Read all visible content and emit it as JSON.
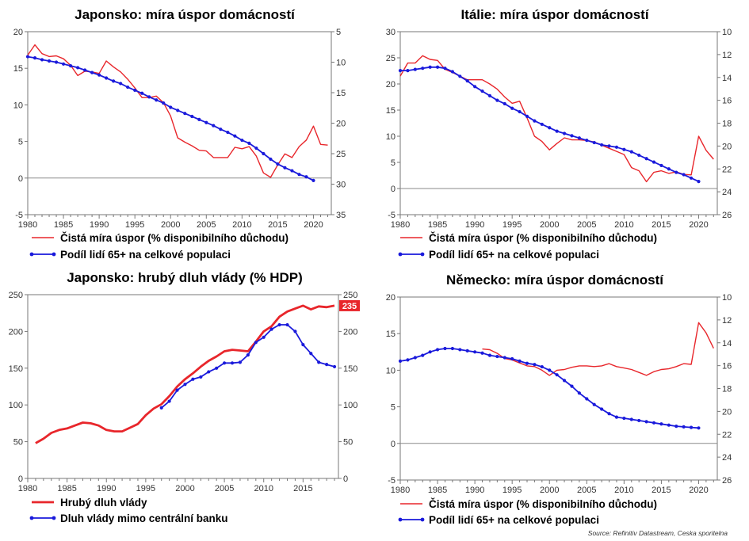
{
  "source": "Source: Refinitiv Datastream, Ceska sporitelna",
  "chart_data": [
    {
      "type": "line",
      "title": "Japonsko: míra úspor domácností",
      "xlim": [
        1980,
        2022.5
      ],
      "xticks": [
        1980,
        1985,
        1990,
        1995,
        2000,
        2005,
        2010,
        2015,
        2020
      ],
      "ylim": [
        -5,
        20
      ],
      "yticks": [
        -5,
        0,
        5,
        10,
        15,
        20
      ],
      "y2lim": [
        35,
        5
      ],
      "y2ticks": [
        5,
        10,
        15,
        20,
        25,
        30,
        35
      ],
      "y2_reversed": true,
      "zero_line": true,
      "series": [
        {
          "name": "Čistá míra úspor (% disponibilního důchodu)",
          "color": "#e8262b",
          "axis": "left",
          "markers": false,
          "width": 1.4,
          "x": [
            1980,
            1981,
            1982,
            1983,
            1984,
            1985,
            1986,
            1987,
            1988,
            1989,
            1990,
            1991,
            1992,
            1993,
            1994,
            1995,
            1996,
            1997,
            1998,
            1999,
            2000,
            2001,
            2002,
            2003,
            2004,
            2005,
            2006,
            2007,
            2008,
            2009,
            2010,
            2011,
            2012,
            2013,
            2014,
            2015,
            2016,
            2017,
            2018,
            2019,
            2020,
            2021,
            2022
          ],
          "values": [
            16.8,
            18.2,
            17.0,
            16.6,
            16.7,
            16.3,
            15.4,
            14.0,
            14.6,
            14.5,
            14.3,
            16.0,
            15.2,
            14.5,
            13.5,
            12.3,
            11.0,
            11.0,
            11.2,
            10.3,
            8.5,
            5.5,
            4.9,
            4.4,
            3.8,
            3.7,
            2.8,
            2.8,
            2.8,
            4.2,
            4.0,
            4.3,
            3.0,
            0.7,
            0.1,
            1.8,
            3.3,
            2.8,
            4.3,
            5.2,
            7.1,
            4.6,
            4.5
          ]
        },
        {
          "name": "Podíl lidí 65+ na celkové populaci",
          "color": "#1a1adb",
          "axis": "right",
          "markers": true,
          "width": 1.8,
          "x": [
            1980,
            1981,
            1982,
            1983,
            1984,
            1985,
            1986,
            1987,
            1988,
            1989,
            1990,
            1991,
            1992,
            1993,
            1994,
            1995,
            1996,
            1997,
            1998,
            1999,
            2000,
            2001,
            2002,
            2003,
            2004,
            2005,
            2006,
            2007,
            2008,
            2009,
            2010,
            2011,
            2012,
            2013,
            2014,
            2015,
            2016,
            2017,
            2018,
            2019,
            2020
          ],
          "values": [
            9.1,
            9.3,
            9.6,
            9.8,
            10.0,
            10.3,
            10.6,
            10.9,
            11.3,
            11.7,
            12.1,
            12.6,
            13.1,
            13.5,
            14.1,
            14.6,
            15.1,
            15.7,
            16.2,
            16.7,
            17.4,
            17.9,
            18.4,
            18.9,
            19.4,
            19.9,
            20.4,
            21.0,
            21.5,
            22.1,
            22.8,
            23.3,
            24.1,
            25.0,
            25.9,
            26.7,
            27.3,
            27.8,
            28.4,
            28.8,
            29.4
          ]
        }
      ]
    },
    {
      "type": "line",
      "title": "Itálie: míra úspor domácností",
      "xlim": [
        1980,
        2022.5
      ],
      "xticks": [
        1980,
        1985,
        1990,
        1995,
        2000,
        2005,
        2010,
        2015,
        2020
      ],
      "ylim": [
        -5,
        30
      ],
      "yticks": [
        -5,
        0,
        5,
        10,
        15,
        20,
        25,
        30
      ],
      "y2lim": [
        26,
        10
      ],
      "y2ticks": [
        10,
        12,
        14,
        16,
        18,
        20,
        22,
        24,
        26
      ],
      "y2_reversed": true,
      "zero_line": true,
      "series": [
        {
          "name": "Čistá míra úspor (% disponibilního důchodu)",
          "color": "#e8262b",
          "axis": "left",
          "markers": false,
          "width": 1.4,
          "x": [
            1980,
            1981,
            1982,
            1983,
            1984,
            1985,
            1986,
            1987,
            1988,
            1989,
            1990,
            1991,
            1992,
            1993,
            1994,
            1995,
            1996,
            1997,
            1998,
            1999,
            2000,
            2001,
            2002,
            2003,
            2004,
            2005,
            2006,
            2007,
            2008,
            2009,
            2010,
            2011,
            2012,
            2013,
            2014,
            2015,
            2016,
            2017,
            2018,
            2019,
            2020,
            2021,
            2022
          ],
          "values": [
            21.5,
            24.0,
            24.0,
            25.4,
            24.7,
            24.5,
            22.8,
            22.2,
            21.5,
            20.8,
            20.8,
            20.8,
            20.0,
            19.0,
            17.5,
            16.3,
            16.7,
            13.5,
            10.0,
            9.0,
            7.4,
            8.6,
            9.7,
            9.3,
            9.3,
            9.2,
            8.9,
            8.3,
            7.7,
            7.1,
            6.5,
            4.0,
            3.4,
            1.3,
            3.1,
            3.4,
            2.9,
            3.2,
            2.7,
            2.6,
            10.0,
            7.3,
            5.6
          ]
        },
        {
          "name": "Podíl lidí 65+ na celkové populaci",
          "color": "#1a1adb",
          "axis": "right",
          "markers": true,
          "width": 1.8,
          "x": [
            1980,
            1981,
            1982,
            1983,
            1984,
            1985,
            1986,
            1987,
            1988,
            1989,
            1990,
            1991,
            1992,
            1993,
            1994,
            1995,
            1996,
            1997,
            1998,
            1999,
            2000,
            2001,
            2002,
            2003,
            2004,
            2005,
            2006,
            2007,
            2008,
            2009,
            2010,
            2011,
            2012,
            2013,
            2014,
            2015,
            2016,
            2017,
            2018,
            2019,
            2020
          ],
          "values": [
            13.4,
            13.4,
            13.3,
            13.2,
            13.1,
            13.1,
            13.2,
            13.5,
            13.9,
            14.3,
            14.8,
            15.2,
            15.6,
            16.0,
            16.3,
            16.7,
            17.0,
            17.4,
            17.8,
            18.1,
            18.4,
            18.7,
            18.9,
            19.1,
            19.3,
            19.5,
            19.7,
            19.9,
            20.0,
            20.1,
            20.3,
            20.5,
            20.8,
            21.1,
            21.4,
            21.7,
            22.0,
            22.3,
            22.5,
            22.8,
            23.1
          ]
        }
      ]
    },
    {
      "type": "line",
      "title": "Japonsko: hrubý dluh vlády (% HDP)",
      "xlim": [
        1980,
        2019.5
      ],
      "xticks": [
        1980,
        1985,
        1990,
        1995,
        2000,
        2005,
        2010,
        2015
      ],
      "ylim": [
        0,
        250
      ],
      "yticks": [
        0,
        50,
        100,
        150,
        200,
        250
      ],
      "y2lim": [
        0,
        250
      ],
      "y2ticks": [
        0,
        50,
        100,
        150,
        200,
        250
      ],
      "y2_reversed": false,
      "zero_line": false,
      "badge": {
        "label": "235",
        "color": "#e8262b"
      },
      "series": [
        {
          "name": "Hrubý dluh vlády",
          "color": "#e8262b",
          "axis": "left",
          "markers": false,
          "width": 2.8,
          "x": [
            1981,
            1982,
            1983,
            1984,
            1985,
            1986,
            1987,
            1988,
            1989,
            1990,
            1991,
            1992,
            1993,
            1994,
            1995,
            1996,
            1997,
            1998,
            1999,
            2000,
            2001,
            2002,
            2003,
            2004,
            2005,
            2006,
            2007,
            2008,
            2009,
            2010,
            2011,
            2012,
            2013,
            2014,
            2015,
            2016,
            2017,
            2018,
            2019
          ],
          "values": [
            48,
            54,
            62,
            66,
            68,
            72,
            76,
            75,
            72,
            66,
            64,
            64,
            69,
            74,
            86,
            95,
            101,
            112,
            125,
            135,
            143,
            152,
            160,
            166,
            173,
            175,
            174,
            173,
            186,
            200,
            207,
            220,
            227,
            231,
            235,
            230,
            234,
            233,
            235
          ]
        },
        {
          "name": "Dluh vlády mimo centrální banku",
          "color": "#1a1adb",
          "axis": "left",
          "markers": true,
          "width": 1.8,
          "x": [
            1997,
            1998,
            1999,
            2000,
            2001,
            2002,
            2003,
            2004,
            2005,
            2006,
            2007,
            2008,
            2009,
            2010,
            2011,
            2012,
            2013,
            2014,
            2015,
            2016,
            2017,
            2018,
            2019
          ],
          "values": [
            96,
            105,
            120,
            128,
            135,
            138,
            145,
            150,
            157,
            157,
            158,
            168,
            185,
            192,
            203,
            209,
            209,
            200,
            182,
            170,
            158,
            155,
            152
          ]
        }
      ]
    },
    {
      "type": "line",
      "title": "Německo: míra úspor domácností",
      "xlim": [
        1980,
        2022.5
      ],
      "xticks": [
        1980,
        1985,
        1990,
        1995,
        2000,
        2005,
        2010,
        2015,
        2020
      ],
      "ylim": [
        -5,
        20
      ],
      "yticks": [
        -5,
        0,
        5,
        10,
        15,
        20
      ],
      "y2lim": [
        26,
        10
      ],
      "y2ticks": [
        10,
        12,
        14,
        16,
        18,
        20,
        22,
        24,
        26
      ],
      "y2_reversed": true,
      "zero_line": true,
      "series": [
        {
          "name": "Čistá míra úspor (% disponibilního důchodu)",
          "color": "#e8262b",
          "axis": "left",
          "markers": false,
          "width": 1.4,
          "x": [
            1991,
            1992,
            1993,
            1994,
            1995,
            1996,
            1997,
            1998,
            1999,
            2000,
            2001,
            2002,
            2003,
            2004,
            2005,
            2006,
            2007,
            2008,
            2009,
            2010,
            2011,
            2012,
            2013,
            2014,
            2015,
            2016,
            2017,
            2018,
            2019,
            2020,
            2021,
            2022
          ],
          "values": [
            12.9,
            12.8,
            12.3,
            11.6,
            11.4,
            11.0,
            10.6,
            10.5,
            10.0,
            9.3,
            10.0,
            10.1,
            10.4,
            10.6,
            10.6,
            10.5,
            10.6,
            10.9,
            10.5,
            10.3,
            10.1,
            9.7,
            9.3,
            9.8,
            10.1,
            10.2,
            10.5,
            10.9,
            10.8,
            16.5,
            15.1,
            13.0
          ]
        },
        {
          "name": "Podíl lidí 65+ na celkové populaci",
          "color": "#1a1adb",
          "axis": "right",
          "markers": true,
          "width": 1.8,
          "x": [
            1980,
            1981,
            1982,
            1983,
            1984,
            1985,
            1986,
            1987,
            1988,
            1989,
            1990,
            1991,
            1992,
            1993,
            1994,
            1995,
            1996,
            1997,
            1998,
            1999,
            2000,
            2001,
            2002,
            2003,
            2004,
            2005,
            2006,
            2007,
            2008,
            2009,
            2010,
            2011,
            2012,
            2013,
            2014,
            2015,
            2016,
            2017,
            2018,
            2019,
            2020
          ],
          "values": [
            15.6,
            15.5,
            15.3,
            15.1,
            14.8,
            14.6,
            14.5,
            14.5,
            14.6,
            14.7,
            14.8,
            14.9,
            15.1,
            15.2,
            15.3,
            15.4,
            15.6,
            15.8,
            15.9,
            16.1,
            16.4,
            16.8,
            17.3,
            17.8,
            18.4,
            18.9,
            19.4,
            19.8,
            20.2,
            20.5,
            20.6,
            20.7,
            20.8,
            20.9,
            21.0,
            21.1,
            21.2,
            21.3,
            21.35,
            21.4,
            21.45
          ]
        }
      ]
    }
  ]
}
